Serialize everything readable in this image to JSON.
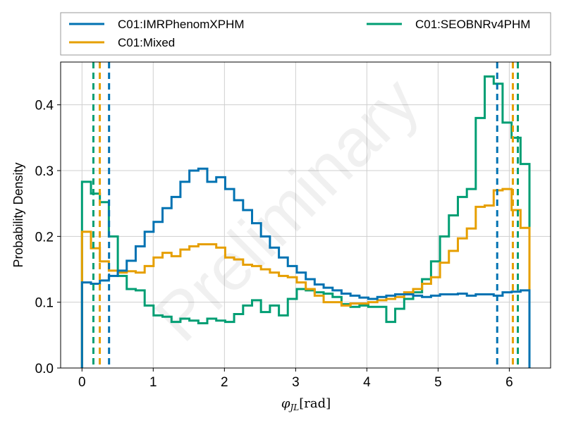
{
  "chart_data": {
    "type": "line",
    "title": "",
    "xlabel": "φ_JL [rad]",
    "ylabel": "Probability Density",
    "xlim": [
      -0.3,
      6.58
    ],
    "ylim": [
      0,
      0.465
    ],
    "xticks": [
      0,
      1,
      2,
      3,
      4,
      5,
      6
    ],
    "yticks": [
      0.0,
      0.1,
      0.2,
      0.3,
      0.4
    ],
    "grid": true,
    "legend_placement": "top",
    "watermark": "Preliminary",
    "bin_edges": [
      0,
      0.126,
      0.251,
      0.377,
      0.503,
      0.628,
      0.754,
      0.88,
      1.005,
      1.131,
      1.257,
      1.382,
      1.508,
      1.634,
      1.759,
      1.885,
      2.011,
      2.136,
      2.262,
      2.388,
      2.513,
      2.639,
      2.765,
      2.89,
      3.016,
      3.142,
      3.267,
      3.393,
      3.519,
      3.644,
      3.77,
      3.896,
      4.021,
      4.147,
      4.273,
      4.398,
      4.524,
      4.65,
      4.775,
      4.901,
      5.027,
      5.152,
      5.278,
      5.404,
      5.529,
      5.655,
      5.781,
      5.906,
      6.032,
      6.158,
      6.283
    ],
    "series": [
      {
        "name": "C01:IMRPhenomXPHM",
        "color": "#0072B2",
        "values": [
          0.13,
          0.128,
          0.133,
          0.14,
          0.148,
          0.163,
          0.185,
          0.207,
          0.222,
          0.243,
          0.26,
          0.283,
          0.3,
          0.303,
          0.283,
          0.29,
          0.272,
          0.255,
          0.24,
          0.22,
          0.2,
          0.183,
          0.168,
          0.155,
          0.145,
          0.135,
          0.127,
          0.122,
          0.118,
          0.113,
          0.11,
          0.107,
          0.105,
          0.108,
          0.11,
          0.112,
          0.112,
          0.11,
          0.108,
          0.11,
          0.112,
          0.112,
          0.113,
          0.11,
          0.112,
          0.112,
          0.11,
          0.115,
          0.116,
          0.118
        ],
        "vline_left": 0.38,
        "vline_right": 5.83
      },
      {
        "name": "C01:Mixed",
        "color": "#E69F00",
        "values": [
          0.207,
          0.182,
          0.162,
          0.148,
          0.145,
          0.147,
          0.145,
          0.155,
          0.168,
          0.175,
          0.17,
          0.18,
          0.185,
          0.188,
          0.188,
          0.183,
          0.168,
          0.165,
          0.157,
          0.155,
          0.15,
          0.145,
          0.14,
          0.138,
          0.13,
          0.12,
          0.11,
          0.1,
          0.1,
          0.095,
          0.098,
          0.098,
          0.1,
          0.103,
          0.105,
          0.108,
          0.115,
          0.12,
          0.128,
          0.138,
          0.16,
          0.178,
          0.197,
          0.212,
          0.245,
          0.247,
          0.27,
          0.272,
          0.24,
          0.213
        ],
        "vline_left": 0.25,
        "vline_right": 6.05
      },
      {
        "name": "C01:SEOBNRv4PHM",
        "color": "#009E73",
        "values": [
          0.283,
          0.265,
          0.252,
          0.2,
          0.14,
          0.12,
          0.118,
          0.095,
          0.08,
          0.078,
          0.07,
          0.075,
          0.072,
          0.068,
          0.075,
          0.072,
          0.07,
          0.082,
          0.095,
          0.103,
          0.085,
          0.095,
          0.08,
          0.105,
          0.12,
          0.118,
          0.115,
          0.113,
          0.108,
          0.097,
          0.093,
          0.095,
          0.093,
          0.093,
          0.07,
          0.09,
          0.105,
          0.115,
          0.135,
          0.162,
          0.2,
          0.232,
          0.26,
          0.272,
          0.38,
          0.443,
          0.432,
          0.373,
          0.35,
          0.31
        ],
        "vline_left": 0.16,
        "vline_right": 6.12
      }
    ]
  }
}
